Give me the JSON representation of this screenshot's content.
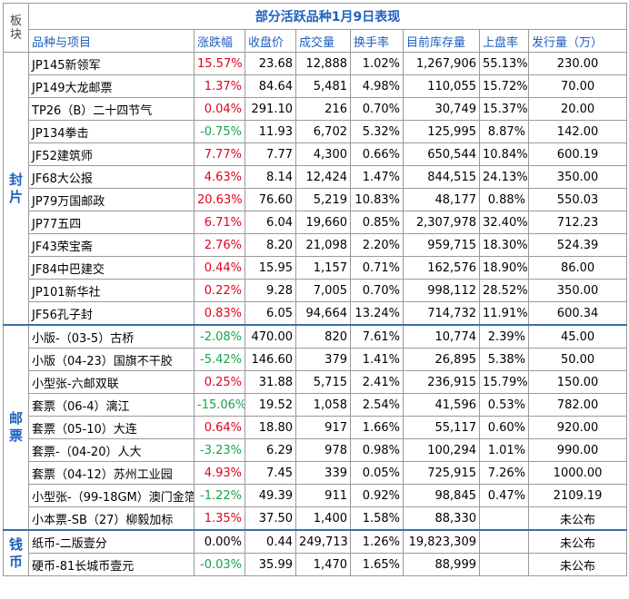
{
  "title": "部分活跃品种1月9日表现",
  "bankuai_label": "板块",
  "headers": [
    "品种与项目",
    "涨跌幅",
    "收盘价",
    "成交量",
    "换手率",
    "目前库存量",
    "上盘率",
    "发行量（万）"
  ],
  "colors": {
    "up": "#e2001a",
    "down": "#16a34a",
    "flat": "#000000",
    "header": "#1f5fbf"
  },
  "categories": [
    {
      "name": "封片",
      "rows": [
        {
          "name": "JP145新领军",
          "change": "15.57%",
          "dir": "up",
          "close": "23.68",
          "volume": "12,888",
          "turnover": "1.02%",
          "stock": "1,267,906",
          "listing": "55.13%",
          "issue": "230.00"
        },
        {
          "name": "JP149大龙邮票",
          "change": "1.37%",
          "dir": "up",
          "close": "84.64",
          "volume": "5,481",
          "turnover": "4.98%",
          "stock": "110,055",
          "listing": "15.72%",
          "issue": "70.00"
        },
        {
          "name": "TP26（B）二十四节气",
          "change": "0.04%",
          "dir": "up",
          "close": "291.10",
          "volume": "216",
          "turnover": "0.70%",
          "stock": "30,749",
          "listing": "15.37%",
          "issue": "20.00"
        },
        {
          "name": "JP134拳击",
          "change": "-0.75%",
          "dir": "down",
          "close": "11.93",
          "volume": "6,702",
          "turnover": "5.32%",
          "stock": "125,995",
          "listing": "8.87%",
          "issue": "142.00"
        },
        {
          "name": "JF52建筑师",
          "change": "7.77%",
          "dir": "up",
          "close": "7.77",
          "volume": "4,300",
          "turnover": "0.66%",
          "stock": "650,544",
          "listing": "10.84%",
          "issue": "600.19"
        },
        {
          "name": "JF68大公报",
          "change": "4.63%",
          "dir": "up",
          "close": "8.14",
          "volume": "12,424",
          "turnover": "1.47%",
          "stock": "844,515",
          "listing": "24.13%",
          "issue": "350.00"
        },
        {
          "name": "JP79万国邮政",
          "change": "20.63%",
          "dir": "up",
          "close": "76.60",
          "volume": "5,219",
          "turnover": "10.83%",
          "stock": "48,177",
          "listing": "0.88%",
          "issue": "550.03"
        },
        {
          "name": "JP77五四",
          "change": "6.71%",
          "dir": "up",
          "close": "6.04",
          "volume": "19,660",
          "turnover": "0.85%",
          "stock": "2,307,978",
          "listing": "32.40%",
          "issue": "712.23"
        },
        {
          "name": "JF43荣宝斋",
          "change": "2.76%",
          "dir": "up",
          "close": "8.20",
          "volume": "21,098",
          "turnover": "2.20%",
          "stock": "959,715",
          "listing": "18.30%",
          "issue": "524.39"
        },
        {
          "name": "JF84中巴建交",
          "change": "0.44%",
          "dir": "up",
          "close": "15.95",
          "volume": "1,157",
          "turnover": "0.71%",
          "stock": "162,576",
          "listing": "18.90%",
          "issue": "86.00"
        },
        {
          "name": "JP101新华社",
          "change": "0.22%",
          "dir": "up",
          "close": "9.28",
          "volume": "7,005",
          "turnover": "0.70%",
          "stock": "998,112",
          "listing": "28.52%",
          "issue": "350.00"
        },
        {
          "name": "JF56孔子封",
          "change": "0.83%",
          "dir": "up",
          "close": "6.05",
          "volume": "94,664",
          "turnover": "13.24%",
          "stock": "714,732",
          "listing": "11.91%",
          "issue": "600.34"
        }
      ]
    },
    {
      "name": "邮票",
      "rows": [
        {
          "name": "小版-（03-5）古桥",
          "change": "-2.08%",
          "dir": "down",
          "close": "470.00",
          "volume": "820",
          "turnover": "7.61%",
          "stock": "10,774",
          "listing": "2.39%",
          "issue": "45.00"
        },
        {
          "name": "小版（04-23）国旗不干胶",
          "change": "-5.42%",
          "dir": "down",
          "close": "146.60",
          "volume": "379",
          "turnover": "1.41%",
          "stock": "26,895",
          "listing": "5.38%",
          "issue": "50.00"
        },
        {
          "name": "小型张-六邮双联",
          "change": "0.25%",
          "dir": "up",
          "close": "31.88",
          "volume": "5,715",
          "turnover": "2.41%",
          "stock": "236,915",
          "listing": "15.79%",
          "issue": "150.00"
        },
        {
          "name": "套票（06-4）漓江",
          "change": "-15.06%",
          "dir": "down",
          "close": "19.52",
          "volume": "1,058",
          "turnover": "2.54%",
          "stock": "41,596",
          "listing": "0.53%",
          "issue": "782.00"
        },
        {
          "name": "套票（05-10）大连",
          "change": "0.64%",
          "dir": "up",
          "close": "18.80",
          "volume": "917",
          "turnover": "1.66%",
          "stock": "55,117",
          "listing": "0.60%",
          "issue": "920.00"
        },
        {
          "name": "套票-（04-20）人大",
          "change": "-3.23%",
          "dir": "down",
          "close": "6.29",
          "volume": "978",
          "turnover": "0.98%",
          "stock": "100,294",
          "listing": "1.01%",
          "issue": "990.00"
        },
        {
          "name": "套票（04-12）苏州工业园",
          "change": "4.93%",
          "dir": "up",
          "close": "7.45",
          "volume": "339",
          "turnover": "0.05%",
          "stock": "725,915",
          "listing": "7.26%",
          "issue": "1000.00"
        },
        {
          "name": "小型张-（99-18GM）澳门金箔",
          "change": "-1.22%",
          "dir": "down",
          "close": "49.39",
          "volume": "911",
          "turnover": "0.92%",
          "stock": "98,845",
          "listing": "0.47%",
          "issue": "2109.19"
        },
        {
          "name": "小本票-SB（27）柳毅加标",
          "change": "1.35%",
          "dir": "up",
          "close": "37.50",
          "volume": "1,400",
          "turnover": "1.58%",
          "stock": "88,330",
          "listing": "",
          "issue": "未公布"
        }
      ]
    },
    {
      "name": "钱币",
      "rows": [
        {
          "name": "纸币-二版壹分",
          "change": "0.00%",
          "dir": "flat",
          "close": "0.44",
          "volume": "249,713",
          "turnover": "1.26%",
          "stock": "19,823,309",
          "listing": "",
          "issue": "未公布"
        },
        {
          "name": "硬币-81长城币壹元",
          "change": "-0.03%",
          "dir": "down",
          "close": "35.99",
          "volume": "1,470",
          "turnover": "1.65%",
          "stock": "88,999",
          "listing": "",
          "issue": "未公布"
        }
      ]
    }
  ]
}
